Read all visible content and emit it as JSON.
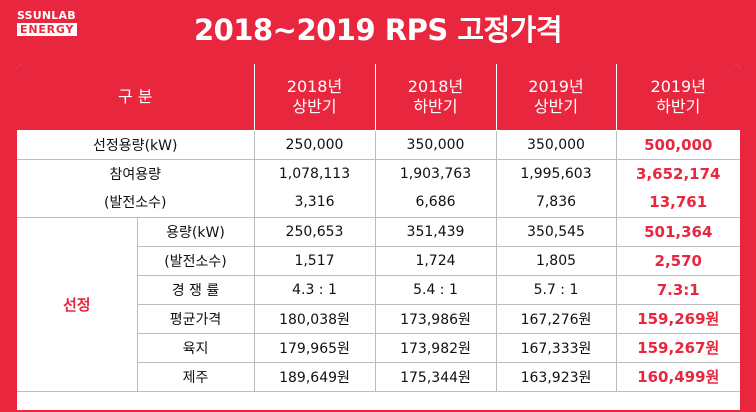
{
  "logo": {
    "line1": "SSUNLAB",
    "line2": "ENERGY"
  },
  "title": "2018~2019 RPS 고정가격",
  "table": {
    "header": {
      "category": "구 분",
      "periods": [
        {
          "year": "2018년",
          "half": "상반기"
        },
        {
          "year": "2018년",
          "half": "하반기"
        },
        {
          "year": "2019년",
          "half": "상반기"
        },
        {
          "year": "2019년",
          "half": "하반기"
        }
      ]
    },
    "capacity_row": {
      "label": "선정용량(kW)",
      "values": [
        "250,000",
        "350,000",
        "350,000",
        "500,000"
      ]
    },
    "participation": {
      "label": "참여용량",
      "sub_label": "(발전소수)",
      "capacity": [
        "1,078,113",
        "1,903,763",
        "1,995,603",
        "3,652,174"
      ],
      "plants": [
        "3,316",
        "6,686",
        "7,836",
        "13,761"
      ]
    },
    "selection": {
      "group_label": "선정",
      "rows": [
        {
          "label": "용량(kW)",
          "values": [
            "250,653",
            "351,439",
            "350,545",
            "501,364"
          ]
        },
        {
          "label": "(발전소수)",
          "values": [
            "1,517",
            "1,724",
            "1,805",
            "2,570"
          ]
        },
        {
          "label": "경 쟁 률",
          "values": [
            "4.3 : 1",
            "5.4 : 1",
            "5.7 : 1",
            "7.3:1"
          ]
        },
        {
          "label": "평균가격",
          "values": [
            "180,038원",
            "173,986원",
            "167,276원",
            "159,269원"
          ]
        },
        {
          "label": "육지",
          "values": [
            "179,965원",
            "173,982원",
            "167,333원",
            "159,267원"
          ]
        },
        {
          "label": "제주",
          "values": [
            "189,649원",
            "175,344원",
            "163,923원",
            "160,499원"
          ]
        }
      ]
    }
  },
  "colors": {
    "accent": "#e8273f",
    "text": "#111111",
    "border": "#bdbdbd"
  }
}
